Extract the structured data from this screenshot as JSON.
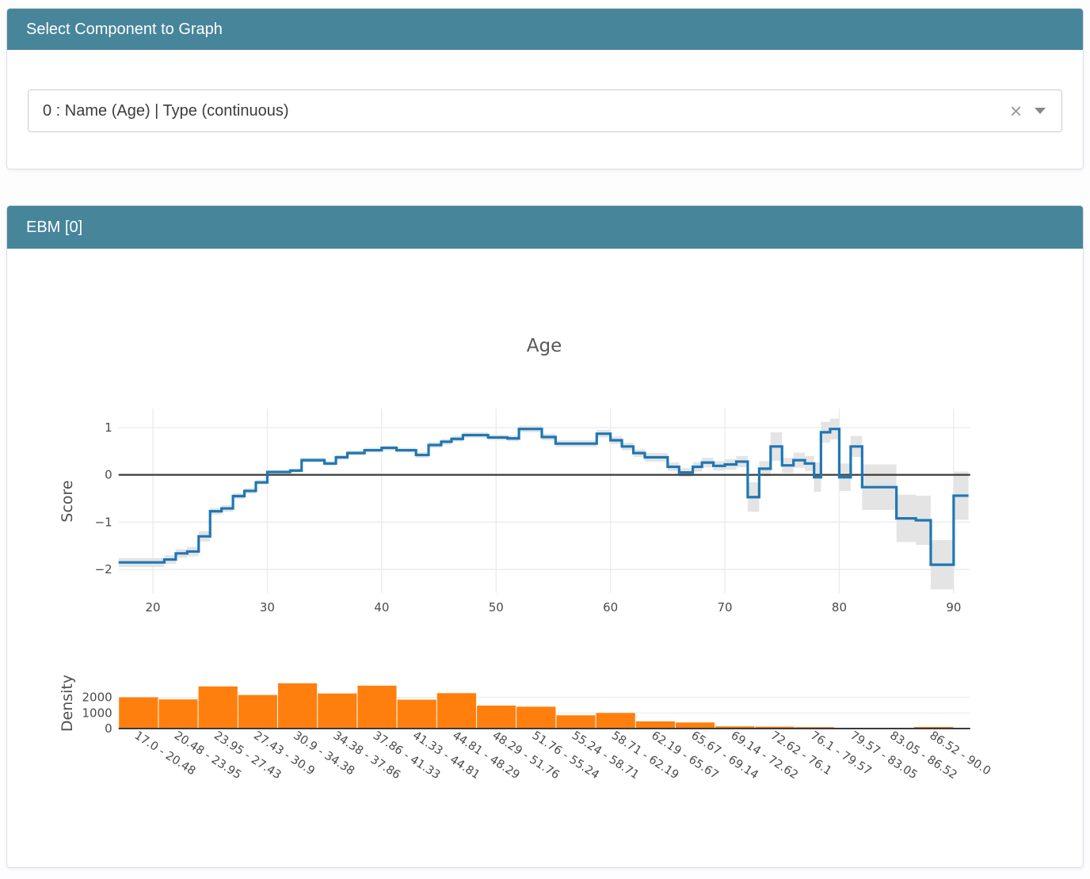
{
  "select_panel": {
    "title": "Select Component to Graph",
    "dropdown": {
      "value": "0 : Name (Age) | Type (continuous)",
      "clear_icon": "×"
    }
  },
  "ebm_panel": {
    "title": "EBM [0]"
  },
  "colors": {
    "teal": "#47859B",
    "border": "#d9dde9",
    "line": "#1f77b4",
    "band": "#e4e4e4",
    "bar": "#ff7f0e",
    "zero": "#3a3a3a",
    "grid": "#eaecee",
    "tick_text": "#4a4a4a"
  },
  "chart_data": [
    {
      "type": "line",
      "subtype": "step-with-error-band",
      "title": "Age",
      "xlabel": "",
      "ylabel": "Score",
      "xlim": [
        17.0,
        91.45
      ],
      "ylim": [
        -2.5,
        1.4
      ],
      "xticks": [
        20,
        30,
        40,
        50,
        60,
        70,
        80,
        90
      ],
      "yticks": [
        1,
        0,
        -1,
        -2
      ],
      "grid": true,
      "steps_format": [
        "x0",
        "x1",
        "y",
        "lo",
        "hi"
      ],
      "steps": [
        [
          17,
          21,
          -1.85,
          -1.95,
          -1.76
        ],
        [
          21,
          22,
          -1.79,
          -1.88,
          -1.7
        ],
        [
          22,
          23,
          -1.66,
          -1.75,
          -1.57
        ],
        [
          23,
          24,
          -1.62,
          -1.72,
          -1.52
        ],
        [
          24,
          25,
          -1.3,
          -1.41,
          -1.19
        ],
        [
          25,
          26,
          -0.77,
          -0.84,
          -0.7
        ],
        [
          26,
          27,
          -0.71,
          -0.78,
          -0.64
        ],
        [
          27,
          28,
          -0.45,
          -0.51,
          -0.39
        ],
        [
          28,
          29,
          -0.34,
          -0.4,
          -0.28
        ],
        [
          29,
          30,
          -0.16,
          -0.21,
          -0.11
        ],
        [
          30,
          32,
          0.06,
          0.02,
          0.1
        ],
        [
          32,
          33,
          0.09,
          0.05,
          0.13
        ],
        [
          33,
          35,
          0.31,
          0.26,
          0.36
        ],
        [
          35,
          36,
          0.24,
          0.19,
          0.29
        ],
        [
          36,
          37,
          0.37,
          0.32,
          0.42
        ],
        [
          37,
          38.5,
          0.46,
          0.41,
          0.51
        ],
        [
          38.5,
          40,
          0.52,
          0.47,
          0.57
        ],
        [
          40,
          41.3,
          0.57,
          0.52,
          0.62
        ],
        [
          41.3,
          43,
          0.52,
          0.47,
          0.57
        ],
        [
          43,
          44.1,
          0.42,
          0.36,
          0.48
        ],
        [
          44.1,
          45.2,
          0.63,
          0.57,
          0.69
        ],
        [
          45.2,
          46.1,
          0.7,
          0.64,
          0.76
        ],
        [
          46.1,
          47.1,
          0.76,
          0.7,
          0.82
        ],
        [
          47.1,
          49.3,
          0.84,
          0.78,
          0.9
        ],
        [
          49.3,
          51,
          0.79,
          0.73,
          0.85
        ],
        [
          51,
          52,
          0.77,
          0.71,
          0.83
        ],
        [
          52,
          54,
          0.97,
          0.9,
          1.04
        ],
        [
          54,
          55.2,
          0.8,
          0.73,
          0.87
        ],
        [
          55.2,
          58.8,
          0.66,
          0.59,
          0.73
        ],
        [
          58.8,
          60,
          0.87,
          0.79,
          0.95
        ],
        [
          60,
          61,
          0.73,
          0.65,
          0.81
        ],
        [
          61,
          62,
          0.6,
          0.52,
          0.68
        ],
        [
          62,
          63,
          0.46,
          0.38,
          0.54
        ],
        [
          63,
          65,
          0.37,
          0.28,
          0.46
        ],
        [
          65,
          66,
          0.17,
          0.08,
          0.26
        ],
        [
          66,
          67.2,
          0.05,
          -0.04,
          0.14
        ],
        [
          67.2,
          68,
          0.17,
          0.07,
          0.27
        ],
        [
          68,
          69,
          0.26,
          0.16,
          0.36
        ],
        [
          69,
          70,
          0.19,
          0.09,
          0.29
        ],
        [
          70,
          71,
          0.22,
          0.11,
          0.33
        ],
        [
          71,
          72,
          0.28,
          0.16,
          0.4
        ],
        [
          72,
          73,
          -0.47,
          -0.78,
          -0.16
        ],
        [
          73,
          74,
          0.13,
          -0.03,
          0.29
        ],
        [
          74,
          75,
          0.6,
          0.3,
          0.9
        ],
        [
          75,
          76,
          0.2,
          0.04,
          0.36
        ],
        [
          76,
          77,
          0.31,
          0.15,
          0.47
        ],
        [
          77,
          77.8,
          0.24,
          0.08,
          0.4
        ],
        [
          77.8,
          78.4,
          -0.05,
          -0.36,
          0.26
        ],
        [
          78.4,
          79.2,
          0.9,
          0.68,
          1.12
        ],
        [
          79.2,
          80,
          0.97,
          0.75,
          1.19
        ],
        [
          80,
          81,
          -0.05,
          -0.34,
          0.24
        ],
        [
          81,
          82,
          0.6,
          0.38,
          0.82
        ],
        [
          82,
          85,
          -0.26,
          -0.74,
          0.22
        ],
        [
          85,
          86.7,
          -0.92,
          -1.42,
          -0.42
        ],
        [
          86.7,
          88,
          -0.96,
          -1.48,
          -0.44
        ],
        [
          88,
          90,
          -1.9,
          -2.42,
          -1.38
        ],
        [
          90,
          91.3,
          -0.44,
          -0.95,
          0.07
        ]
      ]
    },
    {
      "type": "bar",
      "title": "",
      "xlabel": "",
      "ylabel": "Density",
      "ylim": [
        0,
        3300
      ],
      "yticks": [
        0,
        1000,
        2000
      ],
      "bin_edges": [
        17.0,
        20.48,
        23.95,
        27.43,
        30.9,
        34.38,
        37.86,
        41.33,
        44.81,
        48.29,
        51.76,
        55.24,
        58.71,
        62.19,
        65.67,
        69.14,
        72.62,
        76.1,
        79.57,
        83.05,
        86.52,
        90.0
      ],
      "categories": [
        "17.0 - 20.48",
        "20.48 - 23.95",
        "23.95 - 27.43",
        "27.43 - 30.9",
        "30.9 - 34.38",
        "34.38 - 37.86",
        "37.86 - 41.33",
        "41.33 - 44.81",
        "44.81 - 48.29",
        "48.29 - 51.76",
        "51.76 - 55.24",
        "55.24 - 58.71",
        "58.71 - 62.19",
        "62.19 - 65.67",
        "65.67 - 69.14",
        "69.14 - 72.62",
        "72.62 - 76.1",
        "76.1 - 79.57",
        "79.57 - 83.05",
        "83.05 - 86.52",
        "86.52 - 90.0"
      ],
      "values": [
        2000,
        1870,
        2700,
        2150,
        2900,
        2250,
        2750,
        1850,
        2270,
        1470,
        1400,
        850,
        1000,
        460,
        390,
        140,
        120,
        90,
        50,
        40,
        100
      ]
    }
  ]
}
